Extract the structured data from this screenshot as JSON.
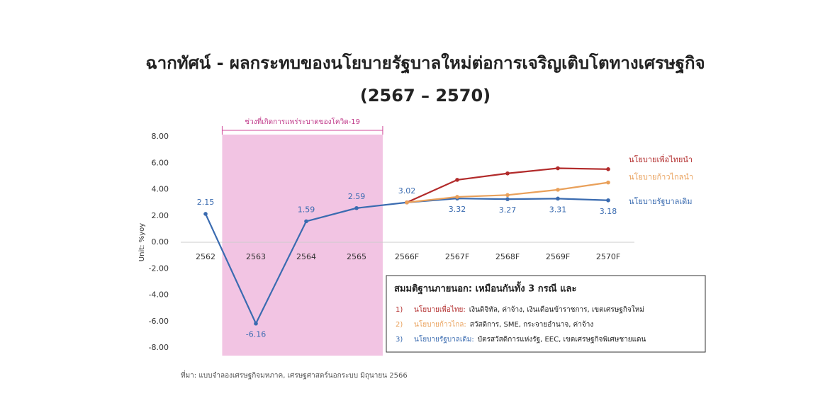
{
  "chart_data": {
    "type": "line",
    "title": "ฉากทัศน์ - ผลกระทบของนโยบายรัฐบาลใหม่ต่อการเจริญเติบโตทางเศรษฐกิจ",
    "subtitle": "(2567 – 2570)",
    "y_label": "Unit: %yoy",
    "categories": [
      "2562",
      "2563",
      "2564",
      "2565",
      "2566F",
      "2567F",
      "2568F",
      "2569F",
      "2570F"
    ],
    "series": [
      {
        "name": "นโยบายรัฐบาลเดิม",
        "color": "#3a6bb0",
        "values": [
          2.15,
          -6.16,
          1.59,
          2.59,
          3.02,
          3.32,
          3.27,
          3.31,
          3.18
        ]
      },
      {
        "name": "นโยบายเพื่อไทยนำ",
        "color": "#b22b2b",
        "values": [
          null,
          null,
          null,
          null,
          3.02,
          4.73,
          5.22,
          5.61,
          5.54
        ]
      },
      {
        "name": "นโยบายก้าวไกลนำ",
        "color": "#e9a05a",
        "values": [
          null,
          null,
          null,
          null,
          3.02,
          3.44,
          3.58,
          3.98,
          4.53
        ]
      }
    ],
    "ylim": [
      -8,
      8
    ],
    "yticks": [
      {
        "value": -8,
        "label": "-8.00"
      },
      {
        "value": -6,
        "label": "-6.00"
      },
      {
        "value": -4,
        "label": "-4.00"
      },
      {
        "value": -2,
        "label": "-2.00"
      },
      {
        "value": 0,
        "label": "0.00"
      },
      {
        "value": 2,
        "label": "2.00"
      },
      {
        "value": 4,
        "label": "4.00"
      },
      {
        "value": 6,
        "label": "6.00"
      },
      {
        "value": 8,
        "label": "8.00"
      }
    ],
    "shaded": {
      "label": "ช่วงที่เกิดการแพร่ระบาดของโควิด-19",
      "from": "2563",
      "to": "2565",
      "color": "#f2c4e3"
    },
    "assumptions": {
      "heading": "สมมติฐานภายนอก: เหมือนกันทั้ง 3 กรณี และ",
      "items": [
        {
          "number": "1)",
          "name": "นโยบายเพื่อไทย:",
          "text": "เงินดิจิทัล, ค่าจ้าง, เงินเดือนข้าราชการ, เขตเศรษฐกิจใหม่",
          "color": "#b22b2b"
        },
        {
          "number": "2)",
          "name": "นโยบายก้าวไกล:",
          "text": "สวัสดิการ, SME, กระจายอำนาจ, ค่าจ้าง",
          "color": "#e9a05a"
        },
        {
          "number": "3)",
          "name": "นโยบายรัฐบาลเดิม:",
          "text": "บัตรสวัสดิการแห่งรัฐ, EEC, เขตเศรษฐกิจพิเศษชายแดน",
          "color": "#3a6bb0"
        }
      ]
    },
    "source": "ที่มา: แบบจำลองเศรษฐกิจมหภาค, เศรษฐศาสตร์นอกระบบ มิถุนายน 2566"
  }
}
